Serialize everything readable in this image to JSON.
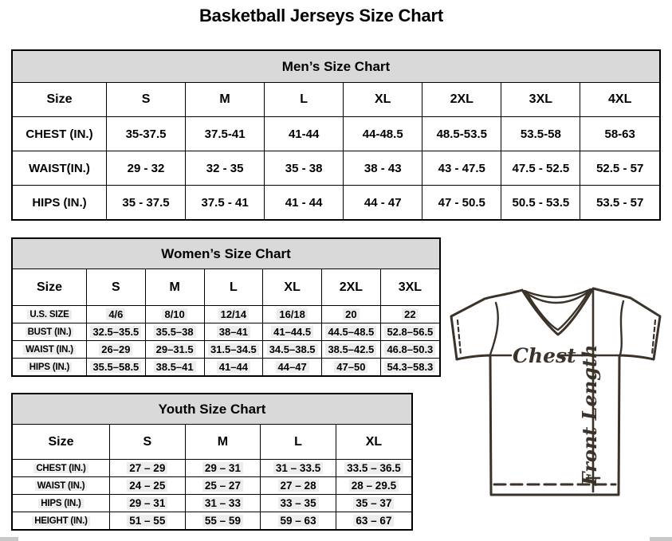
{
  "page": {
    "title": "Basketball Jerseys Size Chart"
  },
  "colors": {
    "table_header_bg": "#d9d9d9",
    "table_border": "#000000",
    "diagram_line": "#3b322a",
    "value_highlight": "#ededed"
  },
  "tables": {
    "men": {
      "title": "Men’s Size Chart",
      "highlight": false,
      "header": [
        "Size",
        "S",
        "M",
        "L",
        "XL",
        "2XL",
        "3XL",
        "4XL"
      ],
      "rows": [
        [
          "CHEST (IN.)",
          "35-37.5",
          "37.5-41",
          "41-44",
          "44-48.5",
          "48.5-53.5",
          "53.5-58",
          "58-63"
        ],
        [
          "WAIST(IN.)",
          "29 - 32",
          "32 - 35",
          "35 - 38",
          "38 - 43",
          "43 - 47.5",
          "47.5 - 52.5",
          "52.5 - 57"
        ],
        [
          "HIPS (IN.)",
          "35 - 37.5",
          "37.5 - 41",
          "41 - 44",
          "44 - 47",
          "47 - 50.5",
          "50.5 - 53.5",
          "53.5 - 57"
        ]
      ]
    },
    "women": {
      "title": "Women’s Size Chart",
      "highlight": true,
      "header": [
        "Size",
        "S",
        "M",
        "L",
        "XL",
        "2XL",
        "3XL"
      ],
      "rows": [
        [
          "U.S. SIZE",
          "4/6",
          "8/10",
          "12/14",
          "16/18",
          "20",
          "22"
        ],
        [
          "BUST (IN.)",
          "32.5–35.5",
          "35.5–38",
          "38–41",
          "41–44.5",
          "44.5–48.5",
          "52.8–56.5"
        ],
        [
          "WAIST (IN.)",
          "26–29",
          "29–31.5",
          "31.5–34.5",
          "34.5–38.5",
          "38.5–42.5",
          "46.8–50.3"
        ],
        [
          "HIPS (IN.)",
          "35.5–58.5",
          "38.5–41",
          "41–44",
          "44–47",
          "47–50",
          "54.3–58.3"
        ]
      ]
    },
    "youth": {
      "title": "Youth Size Chart",
      "highlight": true,
      "header": [
        "Size",
        "S",
        "M",
        "L",
        "XL"
      ],
      "rows": [
        [
          "CHEST (IN.)",
          "27 – 29",
          "29 – 31",
          "31 – 33.5",
          "33.5 – 36.5"
        ],
        [
          "WAIST (IN.)",
          "24 – 25",
          "25 – 27",
          "27 – 28",
          "28 – 29.5"
        ],
        [
          "HIPS (IN.)",
          "29 – 31",
          "31 – 33",
          "33 – 35",
          "35 – 37"
        ],
        [
          "HEIGHT (IN.)",
          "51 – 55",
          "55 – 59",
          "59 – 63",
          "63 – 67"
        ]
      ]
    }
  },
  "diagram": {
    "chest_label": "Chest",
    "front_length_label": "Front Length"
  }
}
